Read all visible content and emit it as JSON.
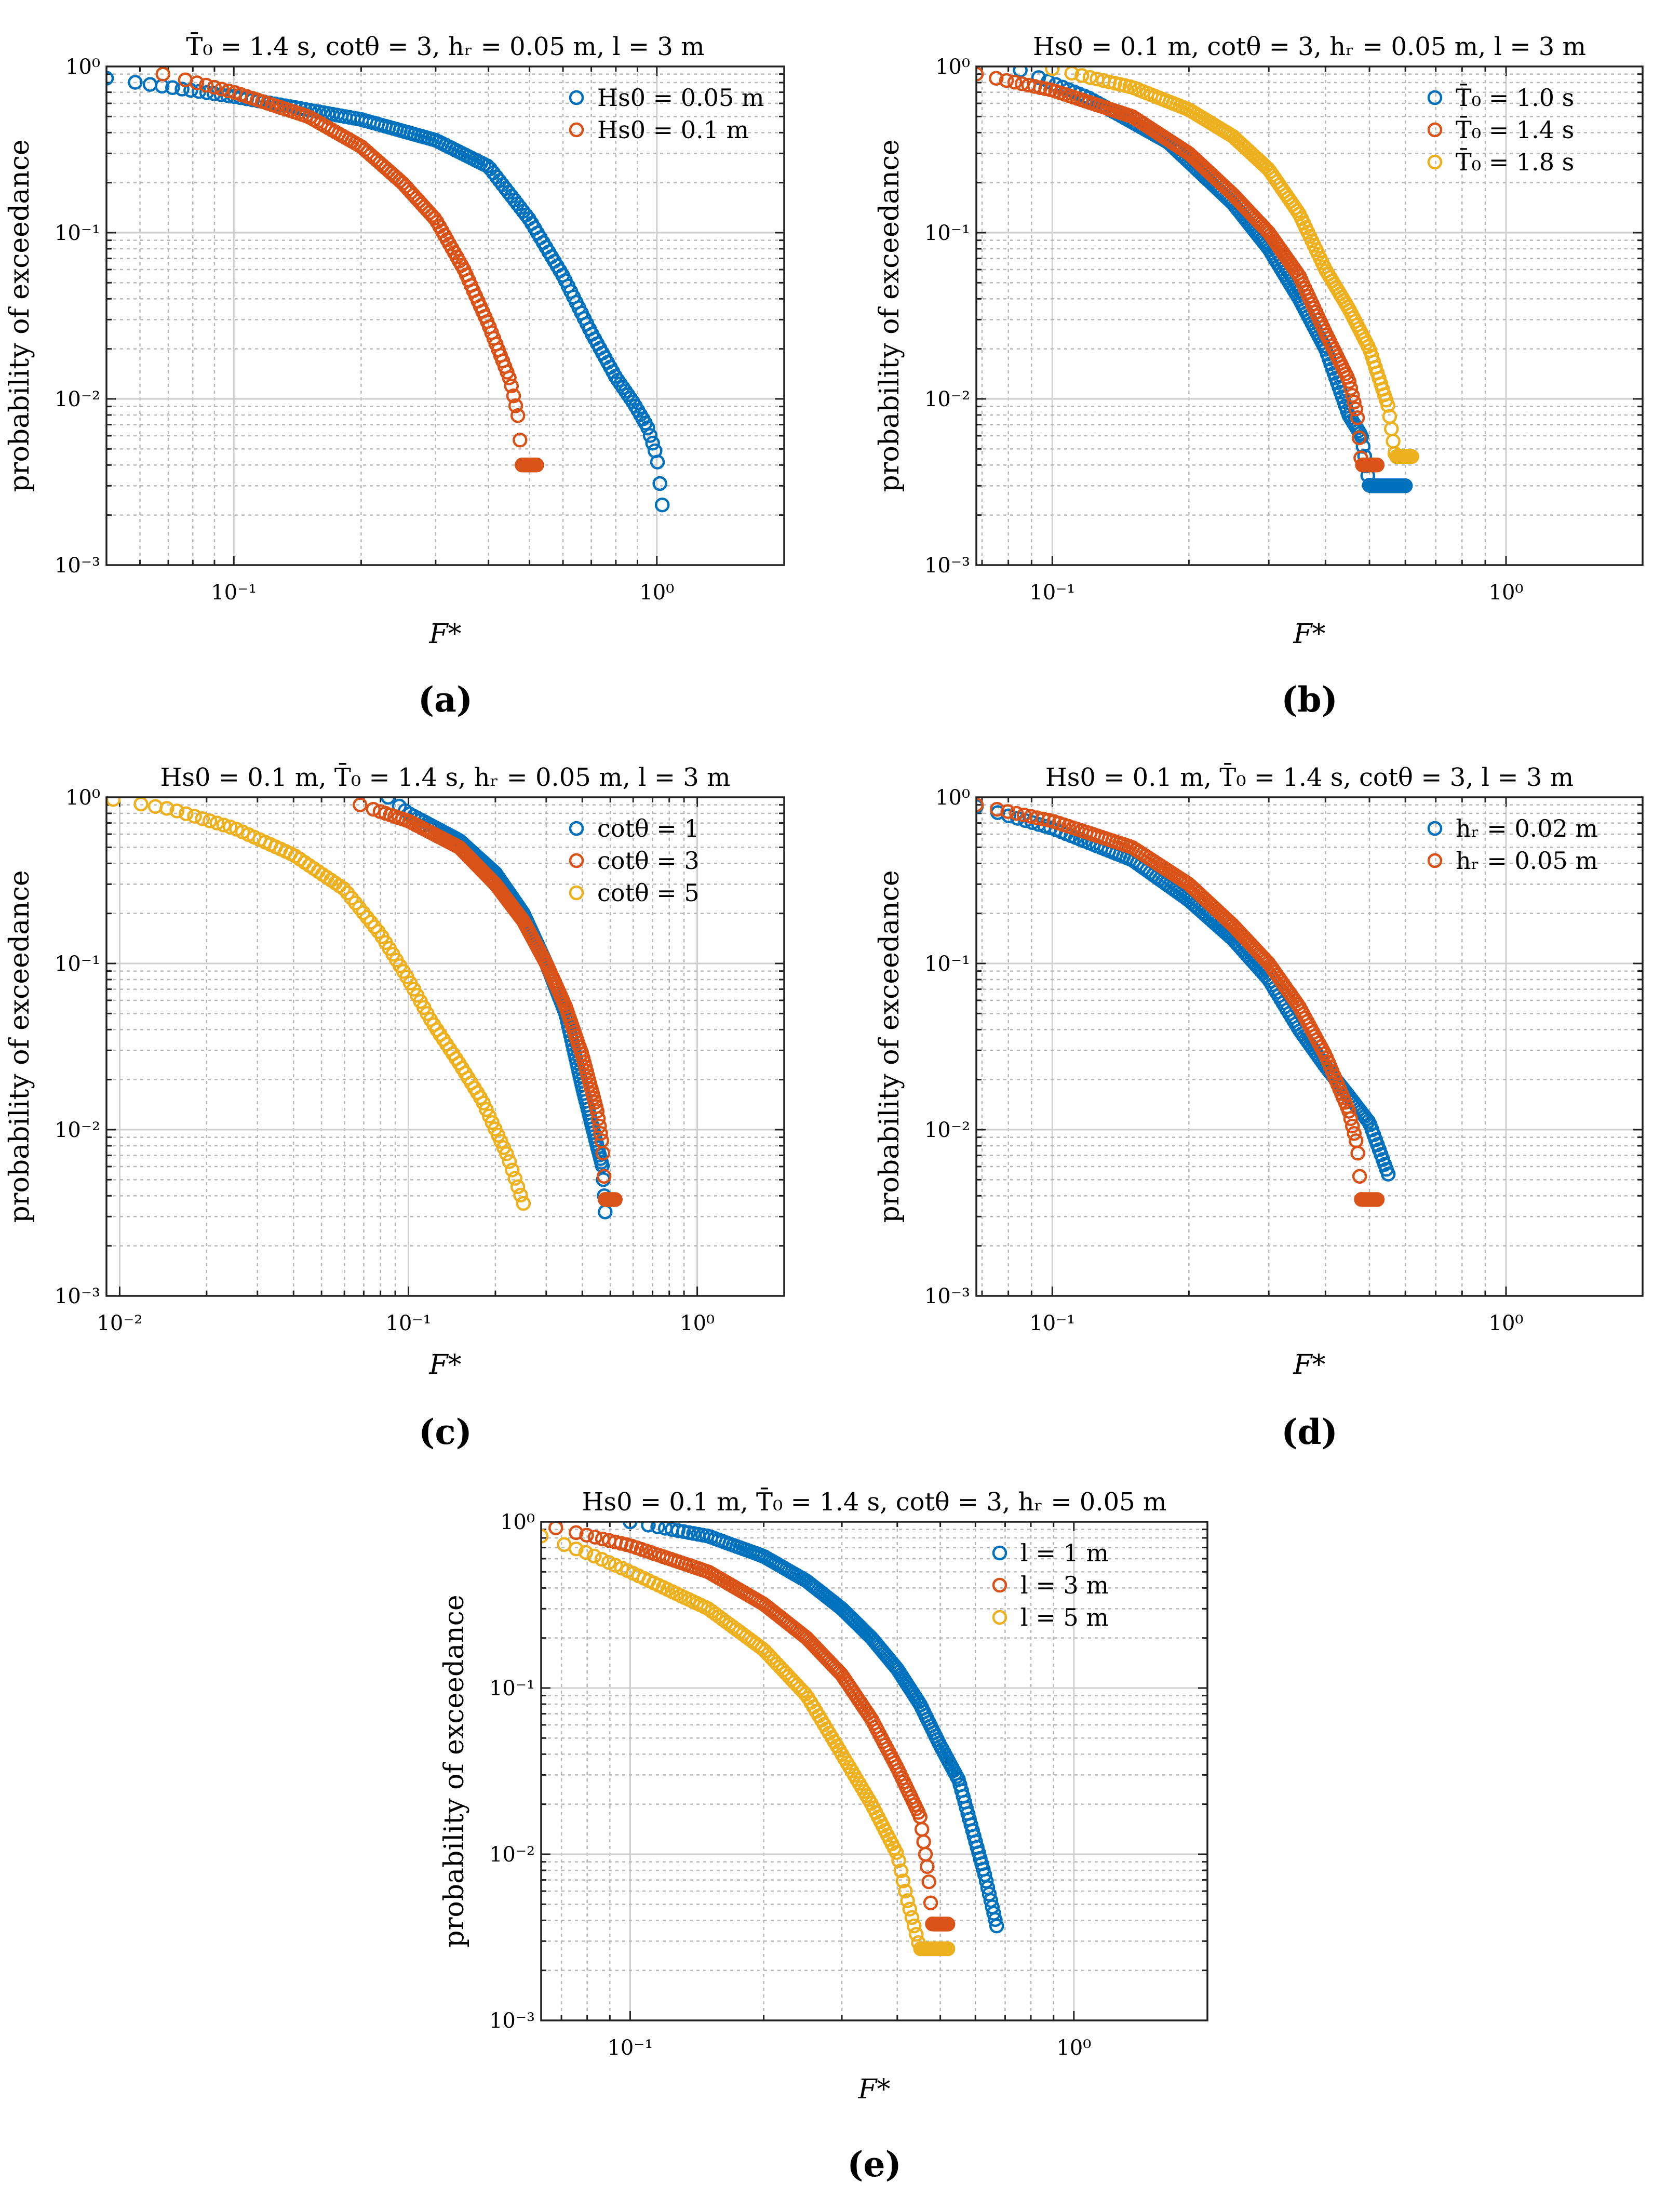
{
  "figure": {
    "colors": {
      "blue": "#0072BD",
      "orange": "#D95319",
      "yellow": "#EDB120"
    }
  },
  "chart_data": [
    {
      "type": "scatter",
      "panel_label": "(a)",
      "title": "T̄₀ = 1.4 s, cotθ = 3, hᵣ = 0.05 m, l = 3 m",
      "xlabel": "F*",
      "ylabel": "probability of exceedance",
      "xscale": "log",
      "yscale": "log",
      "xlim": [
        0.05,
        2
      ],
      "ylim": [
        0.001,
        1
      ],
      "x_tick_labels": [
        {
          "value": 0.1,
          "label": "10⁻¹"
        },
        {
          "value": 1,
          "label": "10⁰"
        }
      ],
      "y_tick_labels": [
        {
          "value": 0.001,
          "label": "10⁻³"
        },
        {
          "value": 0.01,
          "label": "10⁻²"
        },
        {
          "value": 0.1,
          "label": "10⁻¹"
        },
        {
          "value": 1,
          "label": "10⁰"
        }
      ],
      "grid": true,
      "legend_position": "top-right",
      "series": [
        {
          "name": "Hs0 = 0.05 m",
          "color": "blue",
          "curve": {
            "n": 140,
            "xmin": 0.05,
            "knots": [
              [
                0.05,
                0.85
              ],
              [
                0.1,
                0.66
              ],
              [
                0.2,
                0.48
              ],
              [
                0.3,
                0.36
              ],
              [
                0.4,
                0.25
              ],
              [
                0.5,
                0.12
              ],
              [
                0.6,
                0.055
              ],
              [
                0.7,
                0.025
              ],
              [
                0.8,
                0.0135
              ],
              [
                0.88,
                0.0095
              ],
              [
                0.95,
                0.0068
              ],
              [
                1.0,
                0.0045
              ],
              [
                1.03,
                0.0023
              ]
            ]
          }
        },
        {
          "name": "Hs0 = 0.1 m",
          "color": "orange",
          "curve": {
            "n": 110,
            "xmin": 0.068,
            "knots": [
              [
                0.068,
                0.9
              ],
              [
                0.1,
                0.7
              ],
              [
                0.15,
                0.5
              ],
              [
                0.2,
                0.33
              ],
              [
                0.25,
                0.2
              ],
              [
                0.3,
                0.12
              ],
              [
                0.35,
                0.06
              ],
              [
                0.4,
                0.028
              ],
              [
                0.45,
                0.013
              ],
              [
                0.47,
                0.0078
              ],
              [
                0.48,
                0.004
              ],
              [
                0.52,
                0.004
              ]
            ]
          }
        }
      ]
    },
    {
      "type": "scatter",
      "panel_label": "(b)",
      "title": "Hs0 = 0.1 m, cotθ = 3, hᵣ = 0.05 m, l = 3 m",
      "xlabel": "F*",
      "ylabel": "probability of exceedance",
      "xscale": "log",
      "yscale": "log",
      "xlim": [
        0.068,
        2
      ],
      "ylim": [
        0.001,
        1
      ],
      "x_tick_labels": [
        {
          "value": 0.1,
          "label": "10⁻¹"
        },
        {
          "value": 1,
          "label": "10⁰"
        }
      ],
      "y_tick_labels": [
        {
          "value": 0.001,
          "label": "10⁻³"
        },
        {
          "value": 0.01,
          "label": "10⁻²"
        },
        {
          "value": 0.1,
          "label": "10⁻¹"
        },
        {
          "value": 1,
          "label": "10⁰"
        }
      ],
      "grid": true,
      "legend_position": "top-right",
      "series": [
        {
          "name": "T̄₀ = 1.0 s",
          "color": "blue",
          "curve": {
            "n": 160,
            "xmin": 0.085,
            "knots": [
              [
                0.085,
                0.95
              ],
              [
                0.12,
                0.65
              ],
              [
                0.18,
                0.35
              ],
              [
                0.25,
                0.15
              ],
              [
                0.3,
                0.08
              ],
              [
                0.35,
                0.04
              ],
              [
                0.4,
                0.02
              ],
              [
                0.45,
                0.008
              ],
              [
                0.48,
                0.006
              ],
              [
                0.5,
                0.003
              ],
              [
                0.6,
                0.003
              ]
            ]
          }
        },
        {
          "name": "T̄₀ = 1.4 s",
          "color": "orange",
          "curve": {
            "n": 150,
            "xmin": 0.068,
            "knots": [
              [
                0.068,
                0.9
              ],
              [
                0.1,
                0.72
              ],
              [
                0.15,
                0.5
              ],
              [
                0.2,
                0.3
              ],
              [
                0.25,
                0.17
              ],
              [
                0.3,
                0.1
              ],
              [
                0.35,
                0.055
              ],
              [
                0.4,
                0.025
              ],
              [
                0.45,
                0.013
              ],
              [
                0.47,
                0.008
              ],
              [
                0.48,
                0.004
              ],
              [
                0.52,
                0.004
              ]
            ]
          }
        },
        {
          "name": "T̄₀ = 1.8 s",
          "color": "yellow",
          "curve": {
            "n": 130,
            "xmin": 0.1,
            "knots": [
              [
                0.1,
                0.97
              ],
              [
                0.15,
                0.75
              ],
              [
                0.2,
                0.55
              ],
              [
                0.25,
                0.38
              ],
              [
                0.3,
                0.24
              ],
              [
                0.35,
                0.13
              ],
              [
                0.4,
                0.06
              ],
              [
                0.45,
                0.035
              ],
              [
                0.5,
                0.02
              ],
              [
                0.55,
                0.009
              ],
              [
                0.57,
                0.0045
              ],
              [
                0.62,
                0.0045
              ]
            ]
          }
        }
      ]
    },
    {
      "type": "scatter",
      "panel_label": "(c)",
      "title": "Hs0 = 0.1 m, T̄₀ = 1.4 s, hᵣ = 0.05 m, l = 3 m",
      "xlabel": "F*",
      "ylabel": "probability of exceedance",
      "xscale": "log",
      "yscale": "log",
      "xlim": [
        0.009,
        2
      ],
      "ylim": [
        0.001,
        1
      ],
      "x_tick_labels": [
        {
          "value": 0.01,
          "label": "10⁻²"
        },
        {
          "value": 0.1,
          "label": "10⁻¹"
        },
        {
          "value": 1,
          "label": "10⁰"
        }
      ],
      "y_tick_labels": [
        {
          "value": 0.001,
          "label": "10⁻³"
        },
        {
          "value": 0.01,
          "label": "10⁻²"
        },
        {
          "value": 0.1,
          "label": "10⁻¹"
        },
        {
          "value": 1,
          "label": "10⁰"
        }
      ],
      "grid": true,
      "legend_position": "top-right",
      "series": [
        {
          "name": "cotθ = 1",
          "color": "blue",
          "curve": {
            "n": 140,
            "xmin": 0.085,
            "knots": [
              [
                0.085,
                1.0
              ],
              [
                0.1,
                0.8
              ],
              [
                0.15,
                0.55
              ],
              [
                0.2,
                0.35
              ],
              [
                0.25,
                0.2
              ],
              [
                0.3,
                0.1
              ],
              [
                0.35,
                0.05
              ],
              [
                0.4,
                0.018
              ],
              [
                0.45,
                0.008
              ],
              [
                0.47,
                0.006
              ],
              [
                0.48,
                0.0032
              ]
            ]
          }
        },
        {
          "name": "cotθ = 3",
          "color": "orange",
          "curve": {
            "n": 140,
            "xmin": 0.068,
            "knots": [
              [
                0.068,
                0.9
              ],
              [
                0.1,
                0.72
              ],
              [
                0.15,
                0.5
              ],
              [
                0.2,
                0.3
              ],
              [
                0.25,
                0.18
              ],
              [
                0.3,
                0.1
              ],
              [
                0.35,
                0.055
              ],
              [
                0.4,
                0.028
              ],
              [
                0.45,
                0.013
              ],
              [
                0.47,
                0.008
              ],
              [
                0.48,
                0.0038
              ],
              [
                0.52,
                0.0038
              ]
            ]
          }
        },
        {
          "name": "cotθ = 5",
          "color": "yellow",
          "curve": {
            "n": 90,
            "xmin": 0.0095,
            "knots": [
              [
                0.0095,
                0.97
              ],
              [
                0.015,
                0.85
              ],
              [
                0.025,
                0.65
              ],
              [
                0.04,
                0.45
              ],
              [
                0.06,
                0.28
              ],
              [
                0.08,
                0.15
              ],
              [
                0.1,
                0.08
              ],
              [
                0.12,
                0.045
              ],
              [
                0.15,
                0.025
              ],
              [
                0.18,
                0.015
              ],
              [
                0.2,
                0.01
              ],
              [
                0.22,
                0.007
              ],
              [
                0.25,
                0.0036
              ]
            ]
          }
        }
      ]
    },
    {
      "type": "scatter",
      "panel_label": "(d)",
      "title": "Hs0 = 0.1 m, T̄₀ = 1.4 s, cotθ = 3, l = 3 m",
      "xlabel": "F*",
      "ylabel": "probability of exceedance",
      "xscale": "log",
      "yscale": "log",
      "xlim": [
        0.068,
        2
      ],
      "ylim": [
        0.001,
        1
      ],
      "x_tick_labels": [
        {
          "value": 0.1,
          "label": "10⁻¹"
        },
        {
          "value": 1,
          "label": "10⁰"
        }
      ],
      "y_tick_labels": [
        {
          "value": 0.001,
          "label": "10⁻³"
        },
        {
          "value": 0.01,
          "label": "10⁻²"
        },
        {
          "value": 0.1,
          "label": "10⁻¹"
        },
        {
          "value": 1,
          "label": "10⁰"
        }
      ],
      "grid": true,
      "legend_position": "top-right",
      "series": [
        {
          "name": "hᵣ = 0.02 m",
          "color": "blue",
          "curve": {
            "n": 140,
            "xmin": 0.068,
            "knots": [
              [
                0.068,
                0.88
              ],
              [
                0.1,
                0.65
              ],
              [
                0.15,
                0.42
              ],
              [
                0.2,
                0.24
              ],
              [
                0.25,
                0.14
              ],
              [
                0.3,
                0.08
              ],
              [
                0.35,
                0.04
              ],
              [
                0.4,
                0.024
              ],
              [
                0.45,
                0.016
              ],
              [
                0.5,
                0.011
              ],
              [
                0.55,
                0.0054
              ]
            ]
          }
        },
        {
          "name": "hᵣ = 0.05 m",
          "color": "orange",
          "curve": {
            "n": 140,
            "xmin": 0.068,
            "knots": [
              [
                0.068,
                0.9
              ],
              [
                0.1,
                0.72
              ],
              [
                0.15,
                0.5
              ],
              [
                0.2,
                0.3
              ],
              [
                0.25,
                0.17
              ],
              [
                0.3,
                0.1
              ],
              [
                0.35,
                0.055
              ],
              [
                0.4,
                0.028
              ],
              [
                0.45,
                0.013
              ],
              [
                0.47,
                0.008
              ],
              [
                0.48,
                0.0038
              ],
              [
                0.52,
                0.0038
              ]
            ]
          }
        }
      ]
    },
    {
      "type": "scatter",
      "panel_label": "(e)",
      "title": "Hs0 = 0.1 m, T̄₀ = 1.4 s, cotθ = 3, hᵣ = 0.05 m",
      "xlabel": "F*",
      "ylabel": "probability of exceedance",
      "xscale": "log",
      "yscale": "log",
      "xlim": [
        0.063,
        2
      ],
      "ylim": [
        0.001,
        1
      ],
      "x_tick_labels": [
        {
          "value": 0.1,
          "label": "10⁻¹"
        },
        {
          "value": 1,
          "label": "10⁰"
        }
      ],
      "y_tick_labels": [
        {
          "value": 0.001,
          "label": "10⁻³"
        },
        {
          "value": 0.01,
          "label": "10⁻²"
        },
        {
          "value": 0.1,
          "label": "10⁻¹"
        },
        {
          "value": 1,
          "label": "10⁰"
        }
      ],
      "grid": true,
      "legend_position": "top-right",
      "series": [
        {
          "name": "l = 1 m",
          "color": "blue",
          "curve": {
            "n": 150,
            "xmin": 0.1,
            "knots": [
              [
                0.1,
                1.0
              ],
              [
                0.15,
                0.82
              ],
              [
                0.2,
                0.62
              ],
              [
                0.25,
                0.44
              ],
              [
                0.3,
                0.3
              ],
              [
                0.35,
                0.2
              ],
              [
                0.4,
                0.13
              ],
              [
                0.45,
                0.08
              ],
              [
                0.5,
                0.045
              ],
              [
                0.55,
                0.028
              ],
              [
                0.6,
                0.012
              ],
              [
                0.63,
                0.0075
              ],
              [
                0.67,
                0.0037
              ]
            ]
          }
        },
        {
          "name": "l = 3 m",
          "color": "orange",
          "curve": {
            "n": 140,
            "xmin": 0.068,
            "knots": [
              [
                0.068,
                0.92
              ],
              [
                0.1,
                0.72
              ],
              [
                0.15,
                0.5
              ],
              [
                0.2,
                0.32
              ],
              [
                0.25,
                0.2
              ],
              [
                0.3,
                0.12
              ],
              [
                0.35,
                0.065
              ],
              [
                0.4,
                0.033
              ],
              [
                0.45,
                0.017
              ],
              [
                0.47,
                0.0075
              ],
              [
                0.48,
                0.0038
              ],
              [
                0.52,
                0.0038
              ]
            ]
          }
        },
        {
          "name": "l = 5 m",
          "color": "yellow",
          "curve": {
            "n": 120,
            "xmin": 0.063,
            "knots": [
              [
                0.063,
                0.82
              ],
              [
                0.08,
                0.65
              ],
              [
                0.1,
                0.5
              ],
              [
                0.15,
                0.3
              ],
              [
                0.2,
                0.17
              ],
              [
                0.25,
                0.09
              ],
              [
                0.3,
                0.04
              ],
              [
                0.35,
                0.02
              ],
              [
                0.4,
                0.01
              ],
              [
                0.42,
                0.0055
              ],
              [
                0.45,
                0.0027
              ],
              [
                0.52,
                0.0027
              ]
            ]
          }
        }
      ]
    }
  ]
}
